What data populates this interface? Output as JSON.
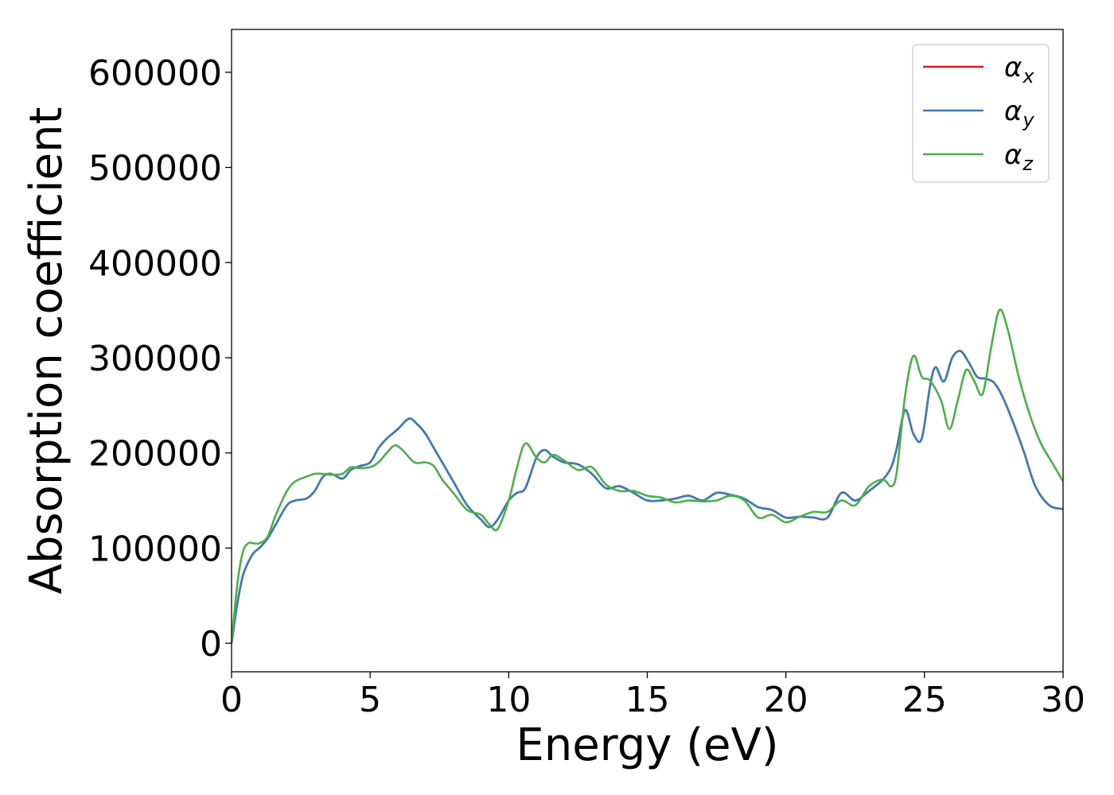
{
  "chart_data": {
    "type": "line",
    "title": "",
    "xlabel": "Energy (eV)",
    "ylabel": "Absorption coefficient",
    "xlim": [
      0,
      30
    ],
    "ylim": [
      -30000,
      645000
    ],
    "x_ticks": [
      0,
      5,
      10,
      15,
      20,
      25,
      30
    ],
    "x_tick_labels": [
      "0",
      "5",
      "10",
      "15",
      "20",
      "25",
      "30"
    ],
    "y_ticks": [
      0,
      100000,
      200000,
      300000,
      400000,
      500000,
      600000
    ],
    "y_tick_labels": [
      "0",
      "100000",
      "200000",
      "300000",
      "400000",
      "500000",
      "600000"
    ],
    "grid": false,
    "legend_position": "top-right",
    "legend": [
      {
        "symbol": "α",
        "subscript": "x",
        "color": "#e41a1c"
      },
      {
        "symbol": "α",
        "subscript": "y",
        "color": "#377eb8"
      },
      {
        "symbol": "α",
        "subscript": "z",
        "color": "#4daf4a"
      }
    ],
    "series": [
      {
        "name": "αx",
        "color": "#e41a1c",
        "x": [
          0,
          0.2,
          0.4,
          0.6,
          0.8,
          1.0,
          1.3,
          1.6,
          2.0,
          2.3,
          2.7,
          3.0,
          3.3,
          3.6,
          4.0,
          4.3,
          4.6,
          5.0,
          5.3,
          5.6,
          6.0,
          6.4,
          6.7,
          7.0,
          7.3,
          7.6,
          8.0,
          8.5,
          9.0,
          9.3,
          9.6,
          10.0,
          10.3,
          10.6,
          11.0,
          11.3,
          11.6,
          12.0,
          12.5,
          13.0,
          13.5,
          14.0,
          14.5,
          15.0,
          15.5,
          16.0,
          16.5,
          17.0,
          17.5,
          18.0,
          18.5,
          19.0,
          19.5,
          20.0,
          20.5,
          21.0,
          21.5,
          22.0,
          22.5,
          23.0,
          23.5,
          23.8,
          24.0,
          24.3,
          24.6,
          24.9,
          25.2,
          25.4,
          25.7,
          26.0,
          26.3,
          26.6,
          26.9,
          27.2,
          27.5,
          27.8,
          28.2,
          28.6,
          29.0,
          29.5,
          30.0
        ],
        "values": [
          0,
          40000,
          70000,
          85000,
          95000,
          100000,
          110000,
          125000,
          145000,
          150000,
          152000,
          160000,
          175000,
          178000,
          173000,
          182000,
          186000,
          190000,
          205000,
          215000,
          225000,
          236000,
          230000,
          220000,
          205000,
          190000,
          170000,
          145000,
          130000,
          122000,
          130000,
          150000,
          158000,
          163000,
          195000,
          203000,
          196000,
          190000,
          188000,
          178000,
          163000,
          165000,
          158000,
          150000,
          150000,
          152000,
          155000,
          150000,
          158000,
          156000,
          152000,
          143000,
          140000,
          132000,
          133000,
          132000,
          132000,
          158000,
          150000,
          160000,
          172000,
          185000,
          205000,
          245000,
          220000,
          215000,
          270000,
          290000,
          275000,
          300000,
          307000,
          295000,
          280000,
          278000,
          274000,
          260000,
          232000,
          200000,
          165000,
          145000,
          141000
        ]
      },
      {
        "name": "αy",
        "color": "#377eb8",
        "x": [
          0,
          0.2,
          0.4,
          0.6,
          0.8,
          1.0,
          1.3,
          1.6,
          2.0,
          2.3,
          2.7,
          3.0,
          3.3,
          3.6,
          4.0,
          4.3,
          4.6,
          5.0,
          5.3,
          5.6,
          6.0,
          6.4,
          6.7,
          7.0,
          7.3,
          7.6,
          8.0,
          8.5,
          9.0,
          9.3,
          9.6,
          10.0,
          10.3,
          10.6,
          11.0,
          11.3,
          11.6,
          12.0,
          12.5,
          13.0,
          13.5,
          14.0,
          14.5,
          15.0,
          15.5,
          16.0,
          16.5,
          17.0,
          17.5,
          18.0,
          18.5,
          19.0,
          19.5,
          20.0,
          20.5,
          21.0,
          21.5,
          22.0,
          22.5,
          23.0,
          23.5,
          23.8,
          24.0,
          24.3,
          24.6,
          24.9,
          25.2,
          25.4,
          25.7,
          26.0,
          26.3,
          26.6,
          26.9,
          27.2,
          27.5,
          27.8,
          28.2,
          28.6,
          29.0,
          29.5,
          30.0
        ],
        "values": [
          0,
          40000,
          70000,
          85000,
          95000,
          100000,
          110000,
          125000,
          145000,
          150000,
          152000,
          160000,
          175000,
          178000,
          173000,
          182000,
          186000,
          190000,
          205000,
          215000,
          225000,
          236000,
          230000,
          220000,
          205000,
          190000,
          170000,
          145000,
          130000,
          122000,
          130000,
          150000,
          158000,
          163000,
          195000,
          203000,
          196000,
          190000,
          188000,
          178000,
          163000,
          165000,
          158000,
          150000,
          150000,
          152000,
          155000,
          150000,
          158000,
          156000,
          152000,
          143000,
          140000,
          132000,
          133000,
          132000,
          132000,
          158000,
          150000,
          160000,
          172000,
          185000,
          205000,
          245000,
          220000,
          215000,
          270000,
          290000,
          275000,
          300000,
          307000,
          295000,
          280000,
          278000,
          274000,
          260000,
          232000,
          200000,
          165000,
          145000,
          141000
        ]
      },
      {
        "name": "αz",
        "color": "#4daf4a",
        "x": [
          0,
          0.2,
          0.4,
          0.6,
          0.8,
          1.0,
          1.3,
          1.6,
          2.0,
          2.3,
          2.7,
          3.0,
          3.3,
          3.6,
          4.0,
          4.3,
          4.6,
          5.0,
          5.3,
          5.6,
          5.9,
          6.2,
          6.6,
          7.0,
          7.3,
          7.6,
          8.0,
          8.5,
          9.0,
          9.3,
          9.6,
          10.0,
          10.3,
          10.6,
          11.0,
          11.3,
          11.6,
          12.0,
          12.5,
          13.0,
          13.5,
          14.0,
          14.5,
          15.0,
          15.5,
          16.0,
          16.5,
          17.0,
          17.5,
          18.0,
          18.5,
          19.0,
          19.5,
          20.0,
          20.5,
          21.0,
          21.5,
          22.0,
          22.5,
          23.0,
          23.5,
          23.8,
          24.0,
          24.3,
          24.6,
          24.9,
          25.2,
          25.6,
          25.9,
          26.2,
          26.5,
          26.8,
          27.1,
          27.4,
          27.7,
          28.0,
          28.4,
          28.8,
          29.2,
          29.6,
          30.0
        ],
        "values": [
          0,
          60000,
          95000,
          105000,
          105000,
          105000,
          112000,
          135000,
          160000,
          170000,
          175000,
          178000,
          178000,
          177000,
          178000,
          185000,
          184000,
          185000,
          190000,
          200000,
          208000,
          202000,
          190000,
          190000,
          186000,
          172000,
          158000,
          140000,
          135000,
          125000,
          120000,
          150000,
          185000,
          210000,
          195000,
          190000,
          198000,
          192000,
          182000,
          185000,
          167000,
          160000,
          160000,
          155000,
          153000,
          148000,
          150000,
          149000,
          150000,
          155000,
          150000,
          132000,
          135000,
          127000,
          133000,
          138000,
          138000,
          150000,
          145000,
          165000,
          172000,
          165000,
          180000,
          260000,
          302000,
          280000,
          276000,
          255000,
          225000,
          255000,
          287000,
          275000,
          262000,
          310000,
          350000,
          330000,
          280000,
          240000,
          210000,
          190000,
          170000
        ]
      }
    ]
  }
}
